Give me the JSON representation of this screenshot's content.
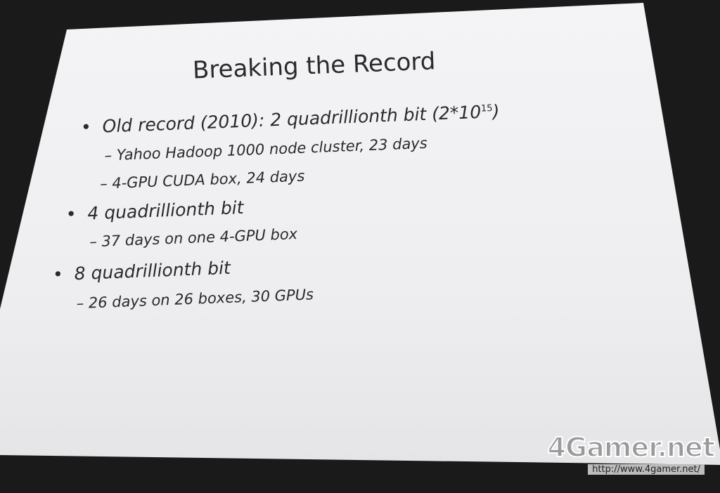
{
  "slide": {
    "title": "Breaking the Record",
    "bullets": [
      {
        "text": "Old record (2010): 2 quadrillionth bit (2*10",
        "sup": "15",
        "after": ")",
        "subs": [
          "Yahoo Hadoop 1000 node cluster, 23 days",
          "4-GPU CUDA box, 24 days"
        ]
      },
      {
        "text": "4 quadrillionth bit",
        "subs": [
          "37 days on one 4-GPU box"
        ]
      },
      {
        "text": "8 quadrillionth bit",
        "subs": [
          "26 days on 26 boxes, 30 GPUs"
        ]
      }
    ],
    "bullet_glyph": "•",
    "dash_glyph": "–"
  },
  "watermark": {
    "logo": "4Gamer.net",
    "url": "http://www.4gamer.net/"
  }
}
